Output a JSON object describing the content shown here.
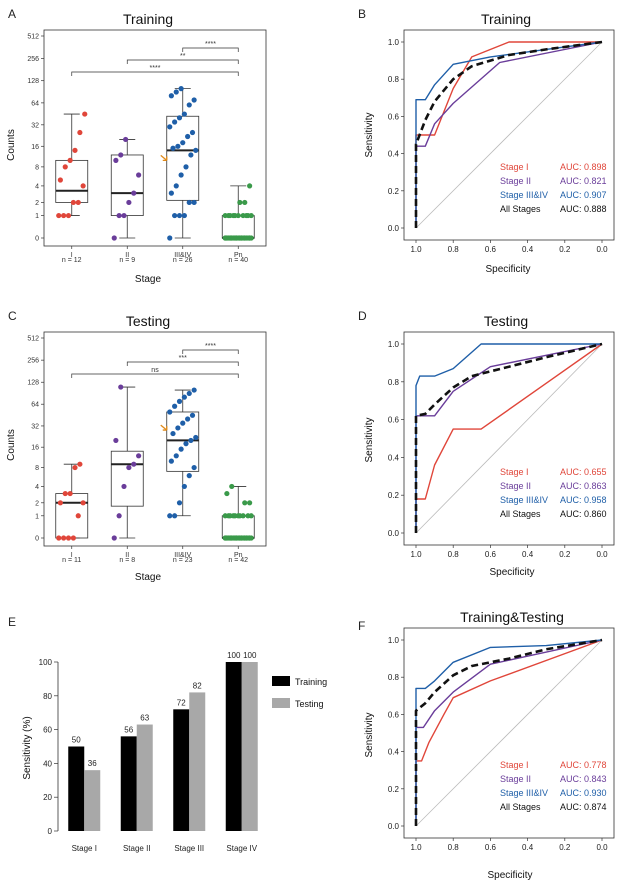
{
  "panels": {
    "A": {
      "letter": "A",
      "title": "Training",
      "ylabel": "Counts",
      "xlabel": "Stage"
    },
    "B": {
      "letter": "B",
      "title": "Training",
      "ylabel": "Sensitivity",
      "xlabel": "Specificity"
    },
    "C": {
      "letter": "C",
      "title": "Testing",
      "ylabel": "Counts",
      "xlabel": "Stage"
    },
    "D": {
      "letter": "D",
      "title": "Testing",
      "ylabel": "Sensitivity",
      "xlabel": "Specificity"
    },
    "E": {
      "letter": "E",
      "title": "",
      "ylabel": "Sensitivity (%)",
      "xlabel": ""
    },
    "F": {
      "letter": "F",
      "title": "Training&Testing",
      "ylabel": "Sensitivity",
      "xlabel": "Specificity"
    }
  },
  "colors": {
    "stage1": "#e0463a",
    "stage2": "#6a3d9a",
    "stage34": "#1f5fa8",
    "pn": "#3a9a4a",
    "all": "#111111",
    "training": "#000000",
    "testing": "#a8a8a8",
    "arrow": "#e08a1a"
  },
  "chart_data": [
    {
      "id": "A",
      "type": "box",
      "title": "Training",
      "xlabel": "Stage",
      "ylabel": "Counts",
      "yscale": "pseudo-log2",
      "yticks": [
        "0",
        "1",
        "2",
        "4",
        "8",
        "16",
        "32",
        "64",
        "128",
        "256",
        "512"
      ],
      "categories": [
        "I",
        "II",
        "III&IV",
        "Pn"
      ],
      "ns": [
        "n = 12",
        "n = 9",
        "n = 26",
        "n = 40"
      ],
      "boxes": [
        {
          "whisker_low": 1,
          "q1": 2,
          "median": 3.3,
          "q3": 10,
          "whisker_high": 45
        },
        {
          "whisker_low": 0,
          "q1": 1,
          "median": 3,
          "q3": 12,
          "whisker_high": 20
        },
        {
          "whisker_low": 0,
          "q1": 2.2,
          "median": 14,
          "q3": 42,
          "whisker_high": 100
        },
        {
          "whisker_low": 0,
          "q1": 0,
          "median": 0,
          "q3": 1,
          "whisker_high": 4
        }
      ],
      "points": [
        [
          1,
          1,
          1,
          2,
          2,
          4,
          5,
          8,
          10,
          14,
          25,
          45
        ],
        [
          0,
          1,
          1,
          2,
          3,
          6,
          10,
          12,
          20
        ],
        [
          0,
          1,
          1,
          1,
          2,
          2,
          3,
          4,
          6,
          8,
          12,
          14,
          15,
          16,
          18,
          22,
          25,
          30,
          35,
          40,
          45,
          60,
          70,
          80,
          90,
          100
        ],
        [
          0,
          0,
          0,
          0,
          0,
          0,
          0,
          0,
          0,
          0,
          0,
          0,
          0,
          0,
          0,
          0,
          0,
          0,
          0,
          0,
          0,
          0,
          0,
          0,
          0,
          0,
          0,
          1,
          1,
          1,
          1,
          1,
          1,
          1,
          1,
          1,
          1,
          2,
          2,
          4
        ]
      ],
      "significance": [
        {
          "from": "III&IV",
          "to": "Pn",
          "label": "****"
        },
        {
          "from": "II",
          "to": "Pn",
          "label": "**"
        },
        {
          "from": "I",
          "to": "Pn",
          "label": "****"
        }
      ]
    },
    {
      "id": "B",
      "type": "roc",
      "title": "Training",
      "xlabel": "Specificity",
      "ylabel": "Sensitivity",
      "ticks": [
        "0.0",
        "0.2",
        "0.4",
        "0.6",
        "0.8",
        "1.0"
      ],
      "series": [
        {
          "name": "Stage I",
          "auc": "AUC: 0.898",
          "spec": [
            1.0,
            1.0,
            0.9,
            0.8,
            0.7,
            0.5,
            0.0
          ],
          "sens": [
            0.0,
            0.5,
            0.5,
            0.75,
            0.92,
            1.0,
            1.0
          ]
        },
        {
          "name": "Stage II",
          "auc": "AUC: 0.821",
          "spec": [
            1.0,
            1.0,
            0.95,
            0.9,
            0.8,
            0.55,
            0.0
          ],
          "sens": [
            0.0,
            0.44,
            0.44,
            0.56,
            0.67,
            0.89,
            1.0
          ]
        },
        {
          "name": "Stage III&IV",
          "auc": "AUC: 0.907",
          "spec": [
            1.0,
            1.0,
            0.95,
            0.9,
            0.8,
            0.6,
            0.3,
            0.0
          ],
          "sens": [
            0.0,
            0.69,
            0.69,
            0.77,
            0.88,
            0.92,
            0.96,
            1.0
          ]
        },
        {
          "name": "All Stages",
          "auc": "AUC: 0.888",
          "dashed": true,
          "spec": [
            1.0,
            1.0,
            0.95,
            0.9,
            0.8,
            0.7,
            0.5,
            0.3,
            0.0
          ],
          "sens": [
            0.0,
            0.45,
            0.58,
            0.68,
            0.8,
            0.87,
            0.93,
            0.96,
            1.0
          ]
        }
      ]
    },
    {
      "id": "C",
      "type": "box",
      "title": "Testing",
      "xlabel": "Stage",
      "ylabel": "Counts",
      "yscale": "pseudo-log2",
      "yticks": [
        "0",
        "1",
        "2",
        "4",
        "8",
        "16",
        "32",
        "64",
        "128",
        "256",
        "512"
      ],
      "categories": [
        "I",
        "II",
        "III&IV",
        "Pn"
      ],
      "ns": [
        "n = 11",
        "n = 8",
        "n = 23",
        "n = 42"
      ],
      "boxes": [
        {
          "whisker_low": 0,
          "q1": 0,
          "median": 2,
          "q3": 3,
          "whisker_high": 9
        },
        {
          "whisker_low": 0,
          "q1": 1.7,
          "median": 9,
          "q3": 14,
          "whisker_high": 110
        },
        {
          "whisker_low": 1,
          "q1": 7,
          "median": 20,
          "q3": 50,
          "whisker_high": 100
        },
        {
          "whisker_low": 0,
          "q1": 0,
          "median": 0,
          "q3": 1,
          "whisker_high": 4
        }
      ],
      "points": [
        [
          0,
          0,
          0,
          0,
          1,
          2,
          2,
          3,
          3,
          8,
          9
        ],
        [
          0,
          1,
          4,
          8,
          9,
          12,
          20,
          110
        ],
        [
          1,
          1,
          2,
          4,
          6,
          8,
          10,
          12,
          15,
          18,
          20,
          22,
          25,
          30,
          35,
          40,
          45,
          50,
          60,
          70,
          80,
          90,
          100
        ],
        [
          0,
          0,
          0,
          0,
          0,
          0,
          0,
          0,
          0,
          0,
          0,
          0,
          0,
          0,
          0,
          0,
          0,
          0,
          0,
          0,
          0,
          0,
          0,
          0,
          0,
          0,
          0,
          0,
          1,
          1,
          1,
          1,
          1,
          1,
          1,
          1,
          1,
          1,
          2,
          2,
          3,
          4
        ]
      ],
      "significance": [
        {
          "from": "III&IV",
          "to": "Pn",
          "label": "****"
        },
        {
          "from": "II",
          "to": "Pn",
          "label": "***"
        },
        {
          "from": "I",
          "to": "Pn",
          "label": "ns"
        }
      ]
    },
    {
      "id": "D",
      "type": "roc",
      "title": "Testing",
      "xlabel": "Specificity",
      "ylabel": "Sensitivity",
      "ticks": [
        "0.0",
        "0.2",
        "0.4",
        "0.6",
        "0.8",
        "1.0"
      ],
      "series": [
        {
          "name": "Stage I",
          "auc": "AUC: 0.655",
          "spec": [
            1.0,
            1.0,
            0.95,
            0.9,
            0.8,
            0.65,
            0.0
          ],
          "sens": [
            0.0,
            0.18,
            0.18,
            0.36,
            0.55,
            0.55,
            1.0
          ]
        },
        {
          "name": "Stage II",
          "auc": "AUC: 0.863",
          "spec": [
            1.0,
            1.0,
            0.9,
            0.8,
            0.6,
            0.3,
            0.0
          ],
          "sens": [
            0.0,
            0.62,
            0.62,
            0.75,
            0.88,
            0.94,
            1.0
          ]
        },
        {
          "name": "Stage III&IV",
          "auc": "AUC: 0.958",
          "spec": [
            1.0,
            1.0,
            0.98,
            0.95,
            0.9,
            0.8,
            0.65,
            0.0
          ],
          "sens": [
            0.0,
            0.78,
            0.83,
            0.83,
            0.83,
            0.87,
            1.0,
            1.0
          ]
        },
        {
          "name": "All Stages",
          "auc": "AUC: 0.860",
          "dashed": true,
          "spec": [
            1.0,
            1.0,
            0.95,
            0.9,
            0.8,
            0.7,
            0.5,
            0.3,
            0.0
          ],
          "sens": [
            0.0,
            0.62,
            0.63,
            0.68,
            0.77,
            0.83,
            0.88,
            0.93,
            1.0
          ]
        }
      ]
    },
    {
      "id": "E",
      "type": "bar",
      "ylabel": "Sensitivity (%)",
      "categories": [
        "Stage I",
        "Stage II",
        "Stage III",
        "Stage IV"
      ],
      "yticks": [
        "0",
        "20",
        "40",
        "60",
        "80",
        "100"
      ],
      "ylim": [
        0,
        100
      ],
      "series": [
        {
          "name": "Training",
          "values": [
            50,
            56,
            72,
            100
          ],
          "labels": [
            "50",
            "56",
            "72",
            "100"
          ]
        },
        {
          "name": "Testing",
          "values": [
            36,
            63,
            82,
            100
          ],
          "labels": [
            "36",
            "63",
            "82",
            "100"
          ]
        }
      ]
    },
    {
      "id": "F",
      "type": "roc",
      "title": "Training&Testing",
      "xlabel": "Specificity",
      "ylabel": "Sensitivity",
      "ticks": [
        "0.0",
        "0.2",
        "0.4",
        "0.6",
        "0.8",
        "1.0"
      ],
      "series": [
        {
          "name": "Stage I",
          "auc": "AUC: 0.778",
          "spec": [
            1.0,
            1.0,
            0.97,
            0.93,
            0.85,
            0.8,
            0.6,
            0.0
          ],
          "sens": [
            0.0,
            0.35,
            0.35,
            0.45,
            0.6,
            0.69,
            0.78,
            1.0
          ]
        },
        {
          "name": "Stage II",
          "auc": "AUC: 0.843",
          "spec": [
            1.0,
            1.0,
            0.96,
            0.9,
            0.8,
            0.6,
            0.0
          ],
          "sens": [
            0.0,
            0.53,
            0.53,
            0.62,
            0.72,
            0.87,
            1.0
          ]
        },
        {
          "name": "Stage III&IV",
          "auc": "AUC: 0.930",
          "spec": [
            1.0,
            1.0,
            0.95,
            0.9,
            0.8,
            0.6,
            0.3,
            0.0
          ],
          "sens": [
            0.0,
            0.74,
            0.74,
            0.78,
            0.88,
            0.96,
            0.97,
            1.0
          ]
        },
        {
          "name": "All Stages",
          "auc": "AUC: 0.874",
          "dashed": true,
          "spec": [
            1.0,
            1.0,
            0.95,
            0.9,
            0.8,
            0.7,
            0.5,
            0.3,
            0.0
          ],
          "sens": [
            0.0,
            0.62,
            0.66,
            0.72,
            0.81,
            0.86,
            0.9,
            0.95,
            1.0
          ]
        }
      ]
    }
  ]
}
